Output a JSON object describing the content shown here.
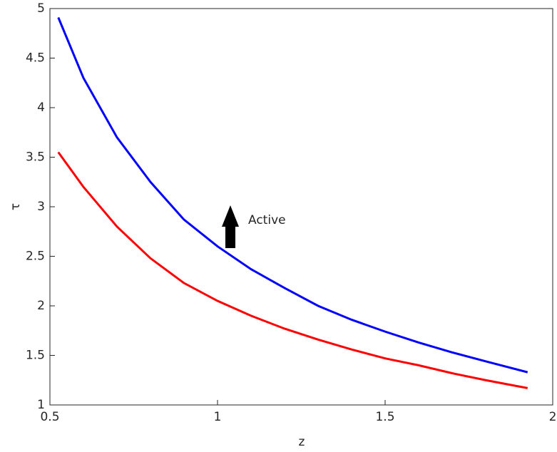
{
  "chart_data": {
    "type": "line",
    "xlabel": "z",
    "ylabel": "τ",
    "xlim": [
      0.5,
      2
    ],
    "ylim": [
      1,
      5
    ],
    "xticks": [
      0.5,
      1,
      1.5,
      2
    ],
    "yticks": [
      1,
      1.5,
      2,
      2.5,
      3,
      3.5,
      4,
      4.5,
      5
    ],
    "grid": false,
    "annotation": "Active",
    "series": [
      {
        "color": "#0000ff",
        "x": [
          0.525,
          0.6,
          0.7,
          0.8,
          0.9,
          1.0,
          1.1,
          1.2,
          1.3,
          1.4,
          1.5,
          1.6,
          1.7,
          1.8,
          1.925
        ],
        "values": [
          4.91,
          4.3,
          3.7,
          3.25,
          2.87,
          2.6,
          2.37,
          2.18,
          2.0,
          1.86,
          1.74,
          1.63,
          1.53,
          1.44,
          1.33
        ]
      },
      {
        "color": "#ff0000",
        "x": [
          0.525,
          0.6,
          0.7,
          0.8,
          0.9,
          1.0,
          1.1,
          1.2,
          1.3,
          1.4,
          1.5,
          1.6,
          1.7,
          1.8,
          1.925
        ],
        "values": [
          3.55,
          3.2,
          2.8,
          2.48,
          2.23,
          2.05,
          1.9,
          1.77,
          1.66,
          1.56,
          1.47,
          1.4,
          1.32,
          1.25,
          1.17
        ]
      }
    ]
  }
}
